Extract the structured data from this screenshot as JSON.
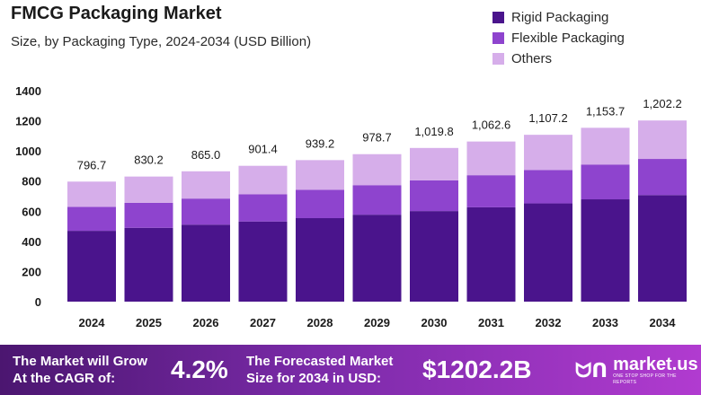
{
  "header": {
    "title": "FMCG Packaging Market",
    "subtitle": "Size, by Packaging Type, 2024-2034 (USD Billion)"
  },
  "colors": {
    "rigid": "#4a148c",
    "flexible": "#8e44ce",
    "others": "#d6aeea"
  },
  "chart_data": {
    "type": "bar",
    "stacked": true,
    "title": "FMCG Packaging Market",
    "subtitle": "Size, by Packaging Type, 2024-2034 (USD Billion)",
    "categories": [
      "2024",
      "2025",
      "2026",
      "2027",
      "2028",
      "2029",
      "2030",
      "2031",
      "2032",
      "2033",
      "2034"
    ],
    "series": [
      {
        "name": "Rigid Packaging",
        "values": [
          470,
          490,
          511,
          532,
          554,
          577,
          601,
          626,
          652,
          679,
          707
        ]
      },
      {
        "name": "Flexible Packaging",
        "values": [
          159,
          166,
          173,
          180,
          188,
          196,
          204,
          213,
          222,
          231,
          240
        ]
      },
      {
        "name": "Others",
        "values": [
          167.7,
          174.2,
          181.0,
          189.4,
          197.2,
          205.7,
          214.8,
          223.6,
          233.2,
          243.7,
          255.2
        ]
      }
    ],
    "totals": [
      796.7,
      830.2,
      865.0,
      901.4,
      939.2,
      978.7,
      1019.8,
      1062.6,
      1107.2,
      1153.7,
      1202.2
    ],
    "total_labels": [
      "796.7",
      "830.2",
      "865.0",
      "901.4",
      "939.2",
      "978.7",
      "1,019.8",
      "1,062.6",
      "1,107.2",
      "1,153.7",
      "1,202.2"
    ],
    "ylim": [
      0,
      1400
    ],
    "yticks": [
      0,
      200,
      400,
      600,
      800,
      1000,
      1200,
      1400
    ],
    "xlabel": "",
    "ylabel": "",
    "legend": "top-right",
    "grid": false
  },
  "footer": {
    "grow_line1": "The Market will Grow",
    "grow_line2": "At the CAGR of:",
    "cagr": "4.2%",
    "forecast_line1": "The Forecasted Market",
    "forecast_line2": "Size for 2034 in USD:",
    "forecast_value": "$1202.2B",
    "logo_icon": "ᗢᑎ",
    "logo_name": "market.us",
    "logo_tagline": "ONE STOP SHOP FOR THE REPORTS"
  }
}
